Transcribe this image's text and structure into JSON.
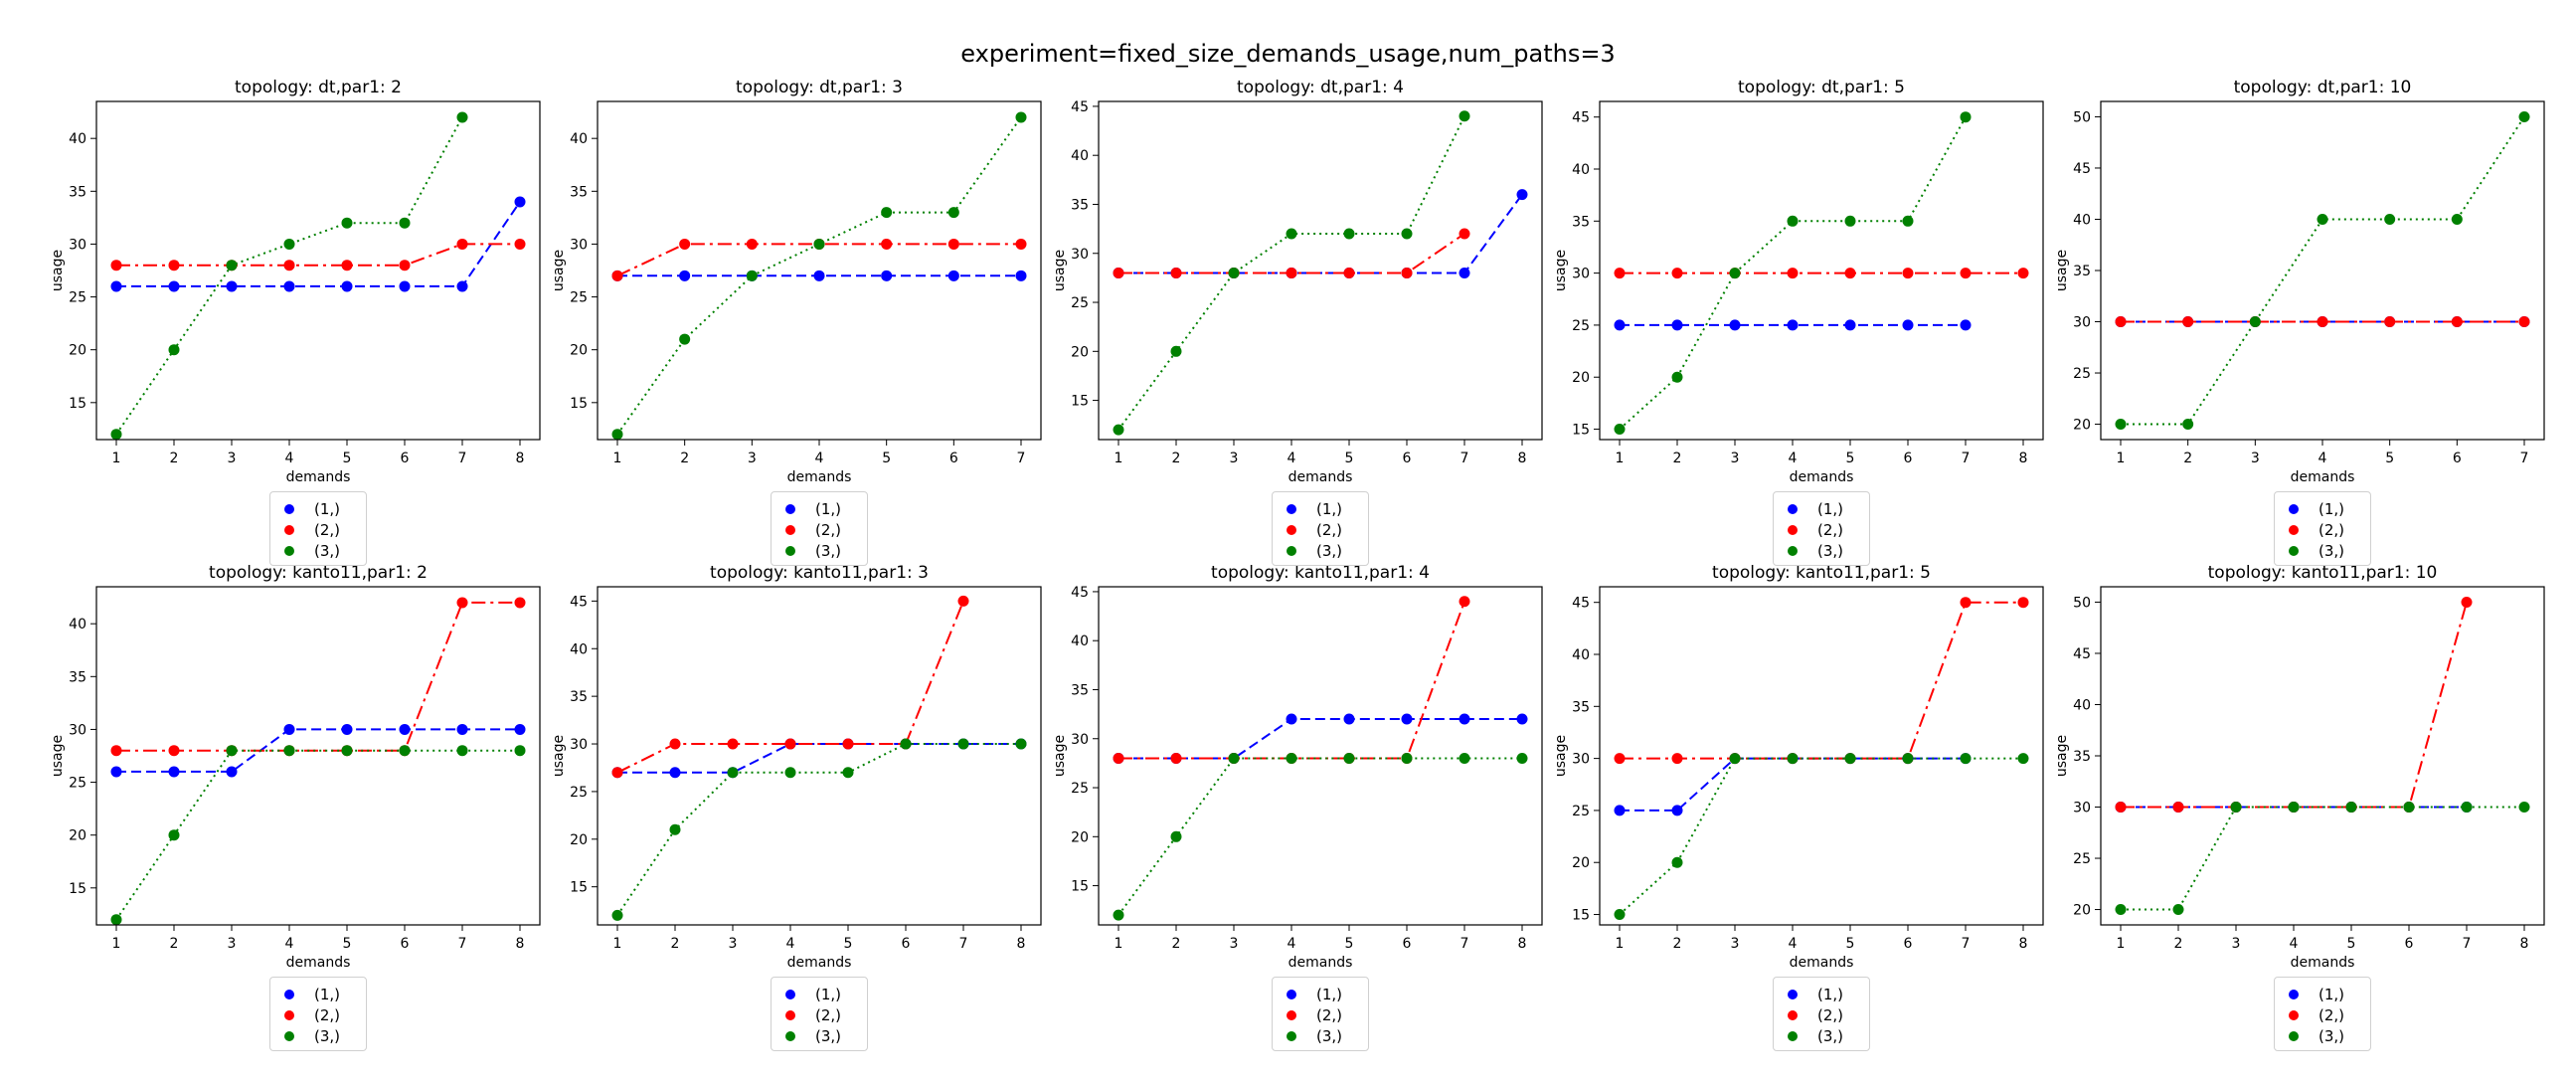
{
  "figure_title": "experiment=fixed_size_demands_usage,num_paths=3",
  "colors": {
    "(1,)": "#0000ff",
    "(2,)": "#ff0000",
    "(3,)": "#008000"
  },
  "chart_data": [
    {
      "type": "line",
      "title": "topology: dt,par1: 2",
      "xlabel": "demands",
      "ylabel": "usage",
      "x": [
        1,
        2,
        3,
        4,
        5,
        6,
        7,
        8
      ],
      "ylim": [
        11.5,
        43.5
      ],
      "yticks": [
        15,
        20,
        25,
        30,
        35,
        40
      ],
      "legend": "below",
      "series": [
        {
          "name": "(1,)",
          "x": [
            1,
            2,
            3,
            4,
            5,
            6,
            7,
            8
          ],
          "values": [
            26,
            26,
            26,
            26,
            26,
            26,
            26,
            34
          ]
        },
        {
          "name": "(2,)",
          "x": [
            1,
            2,
            3,
            4,
            5,
            6,
            7,
            8
          ],
          "values": [
            28,
            28,
            28,
            28,
            28,
            28,
            30,
            30
          ]
        },
        {
          "name": "(3,)",
          "x": [
            1,
            2,
            3,
            4,
            5,
            6,
            7
          ],
          "values": [
            12,
            20,
            28,
            30,
            32,
            32,
            42
          ]
        }
      ]
    },
    {
      "type": "line",
      "title": "topology: dt,par1: 3",
      "xlabel": "demands",
      "ylabel": "usage",
      "x": [
        1,
        2,
        3,
        4,
        5,
        6,
        7
      ],
      "ylim": [
        11.5,
        43.5
      ],
      "yticks": [
        15,
        20,
        25,
        30,
        35,
        40
      ],
      "legend": "below",
      "series": [
        {
          "name": "(1,)",
          "x": [
            1,
            2,
            3,
            4,
            5,
            6,
            7
          ],
          "values": [
            27,
            27,
            27,
            27,
            27,
            27,
            27
          ]
        },
        {
          "name": "(2,)",
          "x": [
            1,
            2,
            3,
            4,
            5,
            6,
            7
          ],
          "values": [
            27,
            30,
            30,
            30,
            30,
            30,
            30
          ]
        },
        {
          "name": "(3,)",
          "x": [
            1,
            2,
            3,
            4,
            5,
            6,
            7
          ],
          "values": [
            12,
            21,
            27,
            30,
            33,
            33,
            42
          ]
        }
      ]
    },
    {
      "type": "line",
      "title": "topology: dt,par1: 4",
      "xlabel": "demands",
      "ylabel": "usage",
      "x": [
        1,
        2,
        3,
        4,
        5,
        6,
        7,
        8
      ],
      "ylim": [
        11,
        45.5
      ],
      "yticks": [
        15,
        20,
        25,
        30,
        35,
        40,
        45
      ],
      "legend": "below",
      "series": [
        {
          "name": "(1,)",
          "x": [
            1,
            2,
            3,
            4,
            5,
            6,
            7,
            8
          ],
          "values": [
            28,
            28,
            28,
            28,
            28,
            28,
            28,
            36
          ]
        },
        {
          "name": "(2,)",
          "x": [
            1,
            2,
            3,
            4,
            5,
            6,
            7
          ],
          "values": [
            28,
            28,
            28,
            28,
            28,
            28,
            32
          ]
        },
        {
          "name": "(3,)",
          "x": [
            1,
            2,
            3,
            4,
            5,
            6,
            7
          ],
          "values": [
            12,
            20,
            28,
            32,
            32,
            32,
            44
          ]
        }
      ]
    },
    {
      "type": "line",
      "title": "topology: dt,par1: 5",
      "xlabel": "demands",
      "ylabel": "usage",
      "x": [
        1,
        2,
        3,
        4,
        5,
        6,
        7,
        8
      ],
      "ylim": [
        14,
        46.5
      ],
      "yticks": [
        15,
        20,
        25,
        30,
        35,
        40,
        45
      ],
      "legend": "below",
      "series": [
        {
          "name": "(1,)",
          "x": [
            1,
            2,
            3,
            4,
            5,
            6,
            7
          ],
          "values": [
            25,
            25,
            25,
            25,
            25,
            25,
            25
          ]
        },
        {
          "name": "(2,)",
          "x": [
            1,
            2,
            3,
            4,
            5,
            6,
            7,
            8
          ],
          "values": [
            30,
            30,
            30,
            30,
            30,
            30,
            30,
            30
          ]
        },
        {
          "name": "(3,)",
          "x": [
            1,
            2,
            3,
            4,
            5,
            6,
            7
          ],
          "values": [
            15,
            20,
            30,
            35,
            35,
            35,
            45
          ]
        }
      ]
    },
    {
      "type": "line",
      "title": "topology: dt,par1: 10",
      "xlabel": "demands",
      "ylabel": "usage",
      "x": [
        1,
        2,
        3,
        4,
        5,
        6,
        7
      ],
      "ylim": [
        18.5,
        51.5
      ],
      "yticks": [
        20,
        25,
        30,
        35,
        40,
        45,
        50
      ],
      "legend": "below",
      "series": [
        {
          "name": "(1,)",
          "x": [
            1,
            2,
            3,
            4,
            5,
            6,
            7
          ],
          "values": [
            30,
            30,
            30,
            30,
            30,
            30,
            30
          ]
        },
        {
          "name": "(2,)",
          "x": [
            1,
            2,
            3,
            4,
            5,
            6,
            7
          ],
          "values": [
            30,
            30,
            30,
            30,
            30,
            30,
            30
          ]
        },
        {
          "name": "(3,)",
          "x": [
            1,
            2,
            3,
            4,
            5,
            6,
            7
          ],
          "values": [
            20,
            20,
            30,
            40,
            40,
            40,
            50
          ]
        }
      ]
    },
    {
      "type": "line",
      "title": "topology: kanto11,par1: 2",
      "xlabel": "demands",
      "ylabel": "usage",
      "x": [
        1,
        2,
        3,
        4,
        5,
        6,
        7,
        8
      ],
      "ylim": [
        11.5,
        43.5
      ],
      "yticks": [
        15,
        20,
        25,
        30,
        35,
        40
      ],
      "legend": "below",
      "series": [
        {
          "name": "(1,)",
          "x": [
            1,
            2,
            3,
            4,
            5,
            6,
            7,
            8
          ],
          "values": [
            26,
            26,
            26,
            30,
            30,
            30,
            30,
            30
          ]
        },
        {
          "name": "(2,)",
          "x": [
            1,
            2,
            3,
            4,
            5,
            6,
            7,
            8
          ],
          "values": [
            28,
            28,
            28,
            28,
            28,
            28,
            42,
            42
          ]
        },
        {
          "name": "(3,)",
          "x": [
            1,
            2,
            3,
            4,
            5,
            6,
            7,
            8
          ],
          "values": [
            12,
            20,
            28,
            28,
            28,
            28,
            28,
            28
          ]
        }
      ]
    },
    {
      "type": "line",
      "title": "topology: kanto11,par1: 3",
      "xlabel": "demands",
      "ylabel": "usage",
      "x": [
        1,
        2,
        3,
        4,
        5,
        6,
        7,
        8
      ],
      "ylim": [
        11,
        46.5
      ],
      "yticks": [
        15,
        20,
        25,
        30,
        35,
        40,
        45
      ],
      "legend": "below",
      "series": [
        {
          "name": "(1,)",
          "x": [
            1,
            2,
            3,
            4,
            5,
            6,
            7,
            8
          ],
          "values": [
            27,
            27,
            27,
            30,
            30,
            30,
            30,
            30
          ]
        },
        {
          "name": "(2,)",
          "x": [
            1,
            2,
            3,
            4,
            5,
            6,
            7
          ],
          "values": [
            27,
            30,
            30,
            30,
            30,
            30,
            45
          ]
        },
        {
          "name": "(3,)",
          "x": [
            1,
            2,
            3,
            4,
            5,
            6,
            7,
            8
          ],
          "values": [
            12,
            21,
            27,
            27,
            27,
            30,
            30,
            30
          ]
        }
      ]
    },
    {
      "type": "line",
      "title": "topology: kanto11,par1: 4",
      "xlabel": "demands",
      "ylabel": "usage",
      "x": [
        1,
        2,
        3,
        4,
        5,
        6,
        7,
        8
      ],
      "ylim": [
        11,
        45.5
      ],
      "yticks": [
        15,
        20,
        25,
        30,
        35,
        40,
        45
      ],
      "legend": "below",
      "series": [
        {
          "name": "(1,)",
          "x": [
            1,
            2,
            3,
            4,
            5,
            6,
            7,
            8
          ],
          "values": [
            28,
            28,
            28,
            32,
            32,
            32,
            32,
            32
          ]
        },
        {
          "name": "(2,)",
          "x": [
            1,
            2,
            3,
            4,
            5,
            6,
            7
          ],
          "values": [
            28,
            28,
            28,
            28,
            28,
            28,
            44
          ]
        },
        {
          "name": "(3,)",
          "x": [
            1,
            2,
            3,
            4,
            5,
            6,
            7,
            8
          ],
          "values": [
            12,
            20,
            28,
            28,
            28,
            28,
            28,
            28
          ]
        }
      ]
    },
    {
      "type": "line",
      "title": "topology: kanto11,par1: 5",
      "xlabel": "demands",
      "ylabel": "usage",
      "x": [
        1,
        2,
        3,
        4,
        5,
        6,
        7,
        8
      ],
      "ylim": [
        14,
        46.5
      ],
      "yticks": [
        15,
        20,
        25,
        30,
        35,
        40,
        45
      ],
      "legend": "below",
      "series": [
        {
          "name": "(1,)",
          "x": [
            1,
            2,
            3,
            4,
            5,
            6,
            7
          ],
          "values": [
            25,
            25,
            30,
            30,
            30,
            30,
            30
          ]
        },
        {
          "name": "(2,)",
          "x": [
            1,
            2,
            3,
            4,
            5,
            6,
            7,
            8
          ],
          "values": [
            30,
            30,
            30,
            30,
            30,
            30,
            45,
            45
          ]
        },
        {
          "name": "(3,)",
          "x": [
            1,
            2,
            3,
            4,
            5,
            6,
            7,
            8
          ],
          "values": [
            15,
            20,
            30,
            30,
            30,
            30,
            30,
            30
          ]
        }
      ]
    },
    {
      "type": "line",
      "title": "topology: kanto11,par1: 10",
      "xlabel": "demands",
      "ylabel": "usage",
      "x": [
        1,
        2,
        3,
        4,
        5,
        6,
        7,
        8
      ],
      "ylim": [
        18.5,
        51.5
      ],
      "yticks": [
        20,
        25,
        30,
        35,
        40,
        45,
        50
      ],
      "legend": "below",
      "series": [
        {
          "name": "(1,)",
          "x": [
            1,
            2,
            3,
            4,
            5,
            6,
            7
          ],
          "values": [
            30,
            30,
            30,
            30,
            30,
            30,
            30
          ]
        },
        {
          "name": "(2,)",
          "x": [
            1,
            2,
            3,
            4,
            5,
            6,
            7
          ],
          "values": [
            30,
            30,
            30,
            30,
            30,
            30,
            50
          ]
        },
        {
          "name": "(3,)",
          "x": [
            1,
            2,
            3,
            4,
            5,
            6,
            7,
            8
          ],
          "values": [
            20,
            20,
            30,
            30,
            30,
            30,
            30,
            30
          ]
        }
      ]
    }
  ]
}
